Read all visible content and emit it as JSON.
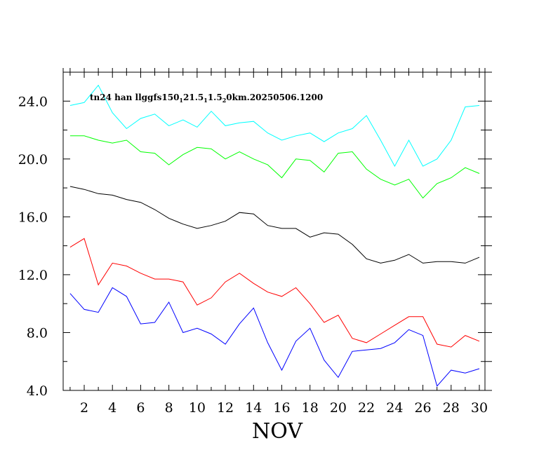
{
  "chart_data": {
    "type": "line",
    "title": "tn24 han llggfs150₁21.5₁1.5₂0km.20250506.1200",
    "title_parts": [
      {
        "text": "tn24 han llggfs150",
        "sub": false
      },
      {
        "text": "1",
        "sub": true
      },
      {
        "text": "21.5",
        "sub": false
      },
      {
        "text": "1",
        "sub": true
      },
      {
        "text": "1.5",
        "sub": false
      },
      {
        "text": "2",
        "sub": true
      },
      {
        "text": "0km.20250506.1200",
        "sub": false
      }
    ],
    "xlabel": "NOV",
    "ylabel": "",
    "xlim": [
      0,
      30.5
    ],
    "ylim": [
      4.0,
      26.0
    ],
    "xticks": [
      2,
      4,
      6,
      8,
      10,
      12,
      14,
      16,
      18,
      20,
      22,
      24,
      26,
      28,
      30
    ],
    "xtick_labels": [
      "2",
      "4",
      "6",
      "8",
      "10",
      "12",
      "14",
      "16",
      "18",
      "20",
      "22",
      "24",
      "26",
      "28",
      "30"
    ],
    "yticks": [
      4,
      8,
      12,
      16,
      20,
      24
    ],
    "ytick_labels": [
      "4.0",
      "8.0",
      "12.0",
      "16.0",
      "20.0",
      "24.0"
    ],
    "x": [
      1,
      2,
      3,
      4,
      5,
      6,
      7,
      8,
      9,
      10,
      11,
      12,
      13,
      14,
      15,
      16,
      17,
      18,
      19,
      20,
      21,
      22,
      23,
      24,
      25,
      26,
      27,
      28,
      29,
      30
    ],
    "grid": false,
    "series": [
      {
        "color": "#00ffff",
        "values": [
          23.7,
          23.9,
          25.1,
          23.2,
          22.1,
          22.8,
          23.1,
          22.3,
          22.7,
          22.2,
          23.3,
          22.3,
          22.5,
          22.6,
          21.8,
          21.3,
          21.6,
          21.8,
          21.2,
          21.8,
          22.1,
          23.0,
          21.3,
          19.5,
          21.3,
          19.5,
          20.0,
          21.3,
          23.6,
          23.7
        ]
      },
      {
        "color": "#00ff00",
        "values": [
          21.6,
          21.6,
          21.3,
          21.1,
          21.3,
          20.5,
          20.4,
          19.6,
          20.3,
          20.8,
          20.7,
          20.0,
          20.5,
          20.0,
          19.6,
          18.7,
          20.0,
          19.9,
          19.1,
          20.4,
          20.5,
          19.3,
          18.6,
          18.2,
          18.6,
          17.3,
          18.3,
          18.7,
          19.4,
          19.0
        ]
      },
      {
        "color": "#000000",
        "values": [
          18.1,
          17.9,
          17.6,
          17.5,
          17.2,
          17.0,
          16.5,
          15.9,
          15.5,
          15.2,
          15.4,
          15.7,
          16.3,
          16.2,
          15.4,
          15.2,
          15.2,
          14.6,
          14.9,
          14.8,
          14.1,
          13.1,
          12.8,
          13.0,
          13.4,
          12.8,
          12.9,
          12.9,
          12.8,
          13.2
        ]
      },
      {
        "color": "#ff0000",
        "values": [
          13.9,
          14.5,
          11.3,
          12.8,
          12.6,
          12.1,
          11.7,
          11.7,
          11.5,
          9.9,
          10.4,
          11.5,
          12.1,
          11.4,
          10.8,
          10.5,
          11.1,
          10.0,
          8.7,
          9.2,
          7.6,
          7.3,
          7.9,
          8.5,
          9.1,
          9.1,
          7.2,
          7.0,
          7.8,
          7.4
        ]
      },
      {
        "color": "#0000ff",
        "values": [
          10.7,
          9.6,
          9.4,
          11.1,
          10.5,
          8.6,
          8.7,
          10.1,
          8.0,
          8.3,
          7.9,
          7.2,
          8.6,
          9.7,
          7.3,
          5.4,
          7.4,
          8.3,
          6.1,
          4.9,
          6.7,
          6.8,
          6.9,
          7.3,
          8.2,
          7.8,
          4.3,
          5.4,
          5.2,
          5.5
        ]
      }
    ]
  }
}
